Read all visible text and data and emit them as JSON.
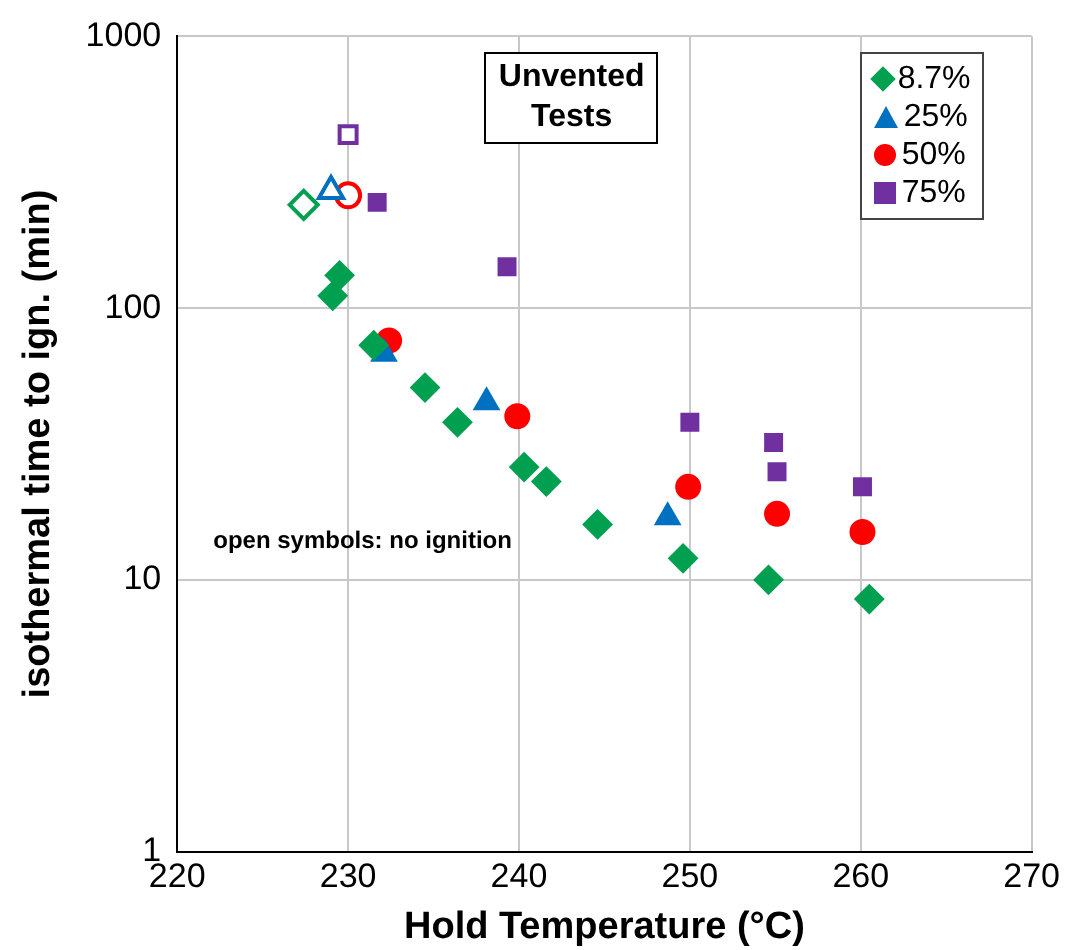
{
  "chart_data": {
    "type": "scatter",
    "title": "Unvented\nTests",
    "xlabel": "Hold Temperature (°C)",
    "ylabel": "isothermal time to ign. (min)",
    "annotations": [
      "open symbols: no ignition"
    ],
    "xlim": [
      220,
      270
    ],
    "xticks": [
      220,
      230,
      240,
      250,
      260,
      270
    ],
    "ylim": [
      1,
      1000
    ],
    "yticks": [
      1,
      10,
      100,
      1000
    ],
    "log": "y",
    "grid": true,
    "legend": "top right",
    "series": [
      {
        "name": "8.7%",
        "color": "#00a050",
        "marker": "diamond",
        "x": [
          229.5,
          229.1,
          231.5,
          234.5,
          236.4,
          240.3,
          241.6,
          244.6,
          249.6,
          254.6,
          260.5
        ],
        "values": [
          132,
          111,
          73,
          51,
          38,
          26,
          23,
          16,
          12,
          10,
          8.5
        ]
      },
      {
        "name": "25%",
        "color": "#0070c0",
        "marker": "triangle",
        "x": [
          232.1,
          238.1,
          248.7
        ],
        "values": [
          68,
          45,
          17
        ]
      },
      {
        "name": "50%",
        "color": "#ff0000",
        "marker": "circle",
        "x": [
          232.4,
          239.9,
          249.9,
          255.1,
          260.1
        ],
        "values": [
          76,
          40,
          22,
          17.5,
          15
        ]
      },
      {
        "name": "75%",
        "color": "#7030a0",
        "marker": "square",
        "x": [
          231.7,
          239.3,
          250,
          254.9,
          255.1,
          260.1
        ],
        "values": [
          245,
          142,
          38,
          32,
          25,
          22
        ]
      },
      {
        "color": "#00a050",
        "marker": "diamond",
        "x": [
          227.4
        ],
        "values": [
          240
        ]
      },
      {
        "color": "#0070c0",
        "marker": "triangle",
        "x": [
          229
        ],
        "values": [
          270
        ]
      },
      {
        "color": "#ff0000",
        "marker": "circle",
        "x": [
          230
        ],
        "values": [
          260
        ]
      },
      {
        "color": "#7030a0",
        "marker": "square",
        "x": [
          230
        ],
        "values": [
          435
        ]
      }
    ]
  }
}
